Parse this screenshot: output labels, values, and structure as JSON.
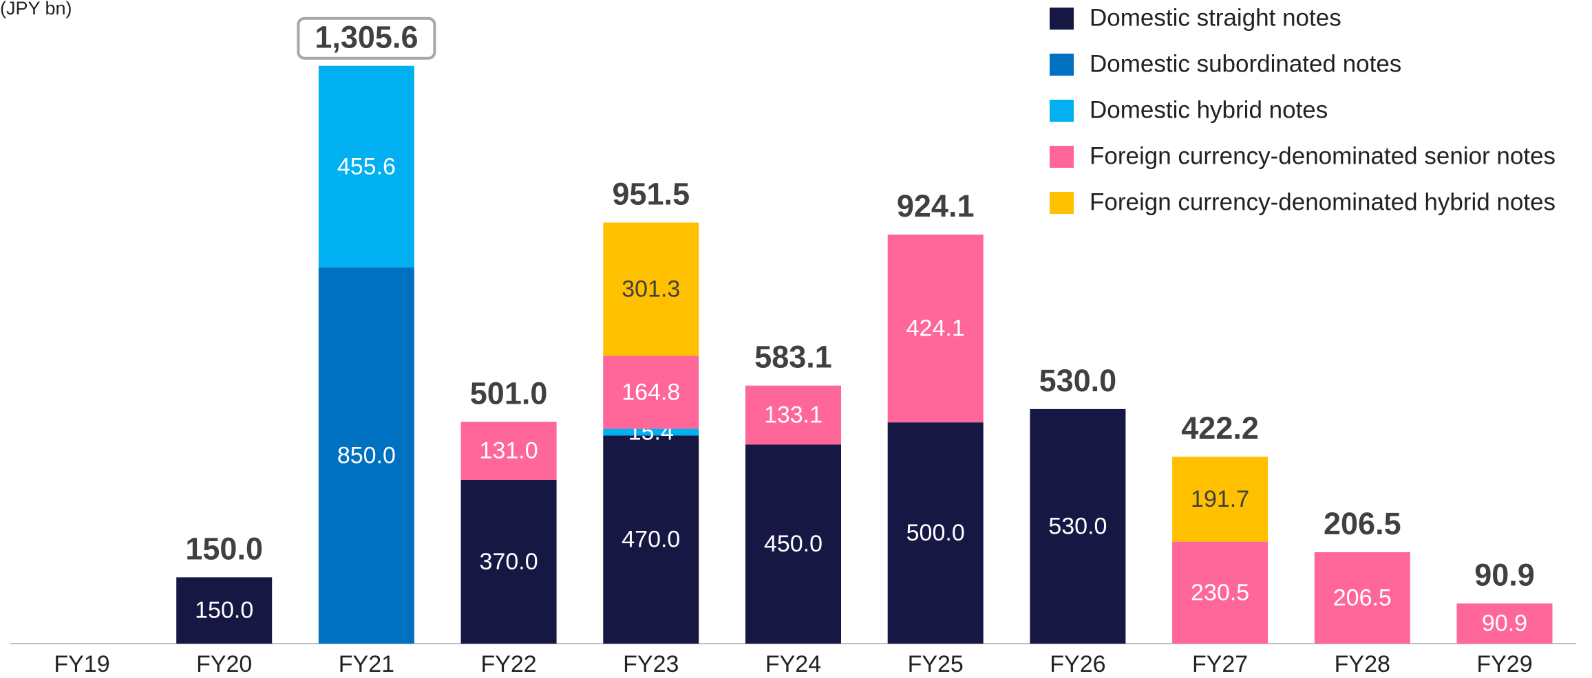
{
  "chart_data": {
    "type": "stacked_bar",
    "unit_label": "(JPY bn)",
    "categories": [
      "FY19",
      "FY20",
      "FY21",
      "FY22",
      "FY23",
      "FY24",
      "FY25",
      "FY26",
      "FY27",
      "FY28",
      "FY29"
    ],
    "series": [
      {
        "name": "Domestic straight notes",
        "color": "#171744",
        "label_color": "#ffffff",
        "values": [
          null,
          150,
          null,
          370,
          470,
          450,
          500,
          530,
          null,
          null,
          null
        ],
        "value_labels": [
          null,
          "150.0",
          null,
          "370.0",
          "470.0",
          "450.0",
          "500.0",
          "530.0",
          null,
          null,
          null
        ]
      },
      {
        "name": "Domestic subordinated notes",
        "color": "#0070c0",
        "label_color": "#ffffff",
        "values": [
          null,
          null,
          850,
          null,
          null,
          null,
          null,
          null,
          null,
          null,
          null
        ],
        "value_labels": [
          null,
          null,
          "850.0",
          null,
          null,
          null,
          null,
          null,
          null,
          null,
          null
        ]
      },
      {
        "name": "Domestic hybrid notes",
        "color": "#00b0f0",
        "label_color": "#ffffff",
        "values": [
          null,
          null,
          455.6,
          null,
          15.4,
          null,
          null,
          null,
          null,
          null,
          null
        ],
        "value_labels": [
          null,
          null,
          "455.6",
          null,
          "15.4",
          null,
          null,
          null,
          null,
          null,
          null
        ]
      },
      {
        "name": "Foreign currency-denominated senior notes",
        "color": "#ff6699",
        "label_color": "#ffffff",
        "values": [
          null,
          null,
          null,
          131,
          164.8,
          133.1,
          424.1,
          null,
          230.5,
          206.5,
          90.9
        ],
        "value_labels": [
          null,
          null,
          null,
          "131.0",
          "164.8",
          "133.1",
          "424.1",
          null,
          "230.5",
          "206.5",
          "90.9"
        ]
      },
      {
        "name": "Foreign currency-denominated hybrid notes",
        "color": "#ffc000",
        "label_color": "#404040",
        "values": [
          null,
          null,
          null,
          null,
          301.3,
          null,
          null,
          null,
          191.7,
          null,
          null
        ],
        "value_labels": [
          null,
          null,
          null,
          null,
          "301.3",
          null,
          null,
          null,
          "191.7",
          null,
          null
        ]
      }
    ],
    "totals": [
      null,
      150,
      1305.6,
      501,
      951.5,
      583.1,
      924.1,
      530,
      422.2,
      206.5,
      90.9
    ],
    "total_labels": [
      null,
      "150.0",
      "1,305.6",
      "501.0",
      "951.5",
      "583.1",
      "924.1",
      "530.0",
      "422.2",
      "206.5",
      "90.9"
    ],
    "highlight_total": 2
  }
}
